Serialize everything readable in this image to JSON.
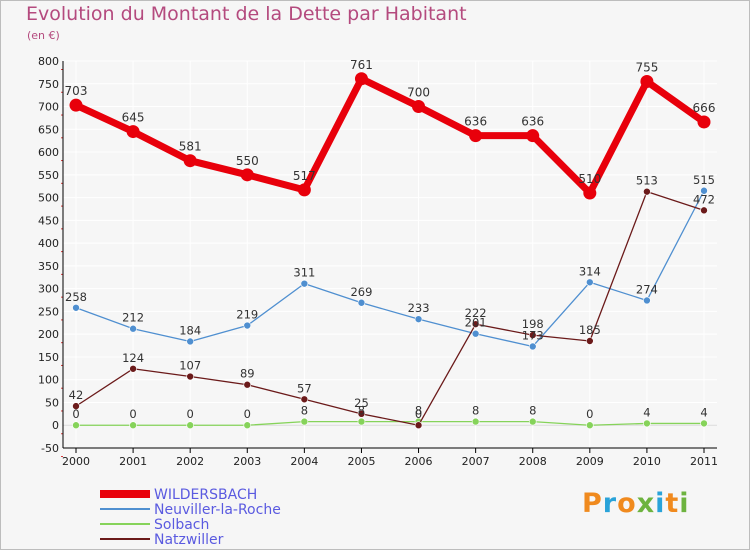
{
  "title": "Evolution du Montant de la Dette par Habitant",
  "subtitle": "(en €)",
  "logo": {
    "text": "Proxiti",
    "colors": [
      "#f08a1e",
      "#29a3d9",
      "#f08a1e",
      "#6db33f",
      "#29a3d9",
      "#f08a1e",
      "#6db33f"
    ]
  },
  "colors": {
    "background": "#f6f6f6",
    "grid": "#ffffff",
    "axis": "#000000",
    "tick_mark": "#d63a3a",
    "title": "#b44a7e",
    "legend_text": "#5a5ae0"
  },
  "chart_data": {
    "type": "line",
    "x": [
      "2000",
      "2001",
      "2002",
      "2003",
      "2004",
      "2005",
      "2006",
      "2007",
      "2008",
      "2009",
      "2010",
      "2011"
    ],
    "ylim": [
      -50,
      800
    ],
    "yticks": [
      800,
      750,
      700,
      650,
      600,
      550,
      500,
      450,
      400,
      350,
      300,
      250,
      200,
      150,
      100,
      50,
      0,
      -50
    ],
    "grid": true,
    "legend_position": "bottom-left",
    "series": [
      {
        "name": "WILDERSBACH",
        "color": "#e8000b",
        "line_width": 7,
        "marker_r": 6.5,
        "values": [
          703,
          645,
          581,
          550,
          517,
          761,
          700,
          636,
          636,
          510,
          755,
          666
        ],
        "labels": [
          "703",
          "645",
          "581",
          "550",
          "517",
          "761",
          "700",
          "636",
          "636",
          "510",
          "755",
          "666"
        ]
      },
      {
        "name": "Neuviller-la-Roche",
        "color": "#4f8fd0",
        "line_width": 1.3,
        "marker_r": 3.5,
        "values": [
          258,
          212,
          184,
          219,
          311,
          269,
          233,
          201,
          173,
          314,
          274,
          515
        ],
        "labels": [
          "258",
          "212",
          "184",
          "219",
          "311",
          "269",
          "233",
          "201",
          "173",
          "314",
          "274",
          "515"
        ]
      },
      {
        "name": "Solbach",
        "color": "#86d35a",
        "line_width": 1.3,
        "marker_r": 3.5,
        "values": [
          0,
          0,
          0,
          0,
          8,
          8,
          8,
          8,
          8,
          0,
          4,
          4
        ],
        "labels": [
          "0",
          "0",
          "0",
          "0",
          "8",
          "8",
          "8",
          "8",
          "8",
          "0",
          "4",
          "4"
        ]
      },
      {
        "name": "Natzwiller",
        "color": "#6b1a1a",
        "line_width": 1.3,
        "marker_r": 3.5,
        "values": [
          42,
          124,
          107,
          89,
          57,
          25,
          0,
          222,
          198,
          185,
          513,
          472
        ],
        "labels": [
          "42",
          "124",
          "107",
          "89",
          "57",
          "25",
          "0",
          "222",
          "198",
          "185",
          "513",
          "472"
        ]
      }
    ]
  }
}
